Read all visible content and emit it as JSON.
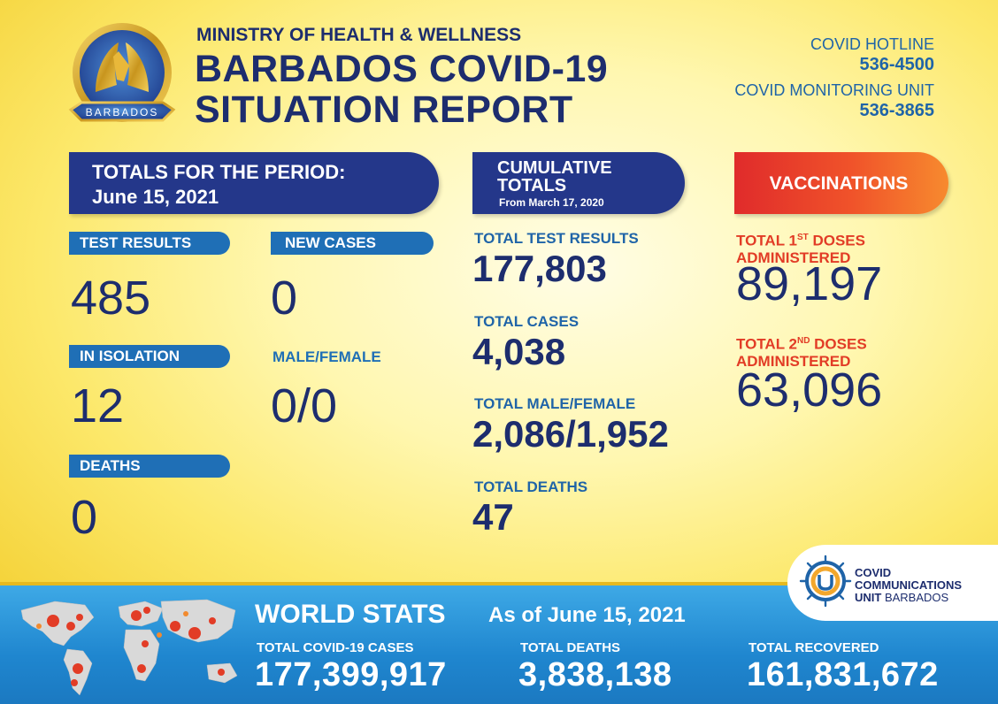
{
  "header": {
    "ministry": "MINISTRY OF HEALTH & WELLNESS",
    "title_line1": "BARBADOS COVID-19",
    "title_line2": "SITUATION REPORT",
    "seal_text": "MINISTRY OF HEALTH AND WELLNESS",
    "seal_country": "BARBADOS",
    "hotline_label": "COVID HOTLINE",
    "hotline_number": "536-4500",
    "monitoring_label": "COVID MONITORING UNIT",
    "monitoring_number": "536-3865"
  },
  "period": {
    "banner_line1": "TOTALS FOR THE PERIOD:",
    "banner_line2": "June 15, 2021",
    "test_results_label": "TEST RESULTS",
    "test_results_value": "485",
    "new_cases_label": "NEW CASES",
    "new_cases_value": "0",
    "in_isolation_label": "IN ISOLATION",
    "in_isolation_value": "12",
    "male_female_label": "MALE/FEMALE",
    "male_female_value": "0/0",
    "deaths_label": "DEATHS",
    "deaths_value": "0"
  },
  "cumulative": {
    "banner_line1": "CUMULATIVE",
    "banner_line2": "TOTALS",
    "banner_line3": "From March 17, 2020",
    "test_results_label": "TOTAL TEST RESULTS",
    "test_results_value": "177,803",
    "cases_label": "TOTAL CASES",
    "cases_value": "4,038",
    "male_female_label": "TOTAL MALE/FEMALE",
    "male_female_value": "2,086/1,952",
    "deaths_label": "TOTAL DEATHS",
    "deaths_value": "47"
  },
  "vaccinations": {
    "banner_label": "VACCINATIONS",
    "first_dose_prefix": "TOTAL 1",
    "first_dose_ordinal": "ST",
    "first_dose_suffix": " DOSES",
    "first_dose_line2": "ADMINISTERED",
    "first_dose_value": "89,197",
    "second_dose_prefix": "TOTAL 2",
    "second_dose_ordinal": "ND",
    "second_dose_suffix": " DOSES",
    "second_dose_line2": "ADMINISTERED",
    "second_dose_value": "63,096"
  },
  "ccu": {
    "line1": "COVID",
    "line2": "COMMUNICATIONS",
    "line3_bold": "UNIT",
    "line3_normal": " BARBADOS"
  },
  "world": {
    "title": "WORLD STATS",
    "as_of": "As of June 15, 2021",
    "cases_label": "TOTAL COVID-19 CASES",
    "cases_value": "177,399,917",
    "deaths_label": "TOTAL DEATHS",
    "deaths_value": "3,838,138",
    "recovered_label": "TOTAL RECOVERED",
    "recovered_value": "161,831,672"
  },
  "colors": {
    "navy": "#1d2d6e",
    "banner_blue": "#24378a",
    "pill_blue": "#1f6fb6",
    "accent_red": "#e23c26",
    "background_yellow": "#fce86a",
    "world_blue": "#1f86cf"
  },
  "icons": [
    "ministry-seal-icon",
    "world-map-icon",
    "ccu-virus-logo-icon"
  ]
}
